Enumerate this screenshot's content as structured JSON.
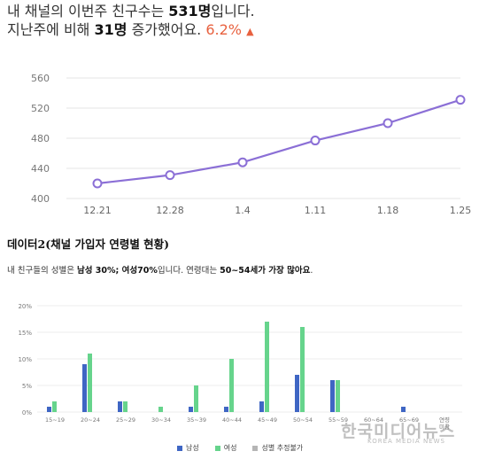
{
  "header": {
    "line1_pre": "내 채널의 이번주 친구수는 ",
    "line1_count": "531명",
    "line1_post": "입니다.",
    "line2_pre": "지난주에 비해 ",
    "line2_delta": "31명",
    "line2_mid": " 증가했어요. ",
    "line2_pct": "6.2%",
    "trend_icon": "triangle-up-icon"
  },
  "section_title": "데이터2(채널 가입자 연령별 현황)",
  "summary": {
    "pre": "내 친구들의 성별은 ",
    "male": "남성 30%",
    "sep": "; ",
    "female": "여성70%",
    "mid": "입니다. 연령대는 ",
    "age": "50~54세가 가장 많아요",
    "post": "."
  },
  "watermark": {
    "text": "한국미디어뉴스",
    "sub": "KOREA MEDIA NEWS"
  },
  "chart_data": [
    {
      "type": "line",
      "x": [
        "12.21",
        "12.28",
        "1.4",
        "1.11",
        "1.18",
        "1.25"
      ],
      "series": [
        {
          "values": [
            420,
            431,
            448,
            477,
            500,
            531
          ]
        }
      ],
      "yticks": [
        400,
        440,
        480,
        520,
        560
      ],
      "ylim": [
        400,
        560
      ],
      "grid": true,
      "color": "#8b6fd6"
    },
    {
      "type": "bar",
      "categories": [
        "15~19",
        "20~24",
        "25~29",
        "30~34",
        "35~39",
        "40~44",
        "45~49",
        "50~54",
        "55~59",
        "60~64",
        "65~69",
        "연령 미상"
      ],
      "series": [
        {
          "name": "남성",
          "color": "#3f66c4",
          "values": [
            1,
            9,
            2,
            0,
            1,
            1,
            2,
            7,
            6,
            0,
            1,
            0
          ]
        },
        {
          "name": "여성",
          "color": "#66d48c",
          "values": [
            2,
            11,
            2,
            1,
            5,
            10,
            17,
            16,
            6,
            0,
            0,
            0
          ]
        },
        {
          "name": "성별 추정불가",
          "color": "#b5b5b5",
          "values": [
            0,
            0,
            0,
            0,
            0,
            0,
            0,
            0,
            0,
            0,
            0,
            0
          ]
        }
      ],
      "yticks": [
        "0%",
        "5%",
        "10%",
        "15%",
        "20%"
      ],
      "ylim": [
        0,
        20
      ],
      "grid": true,
      "legend": "bottom-center"
    }
  ]
}
